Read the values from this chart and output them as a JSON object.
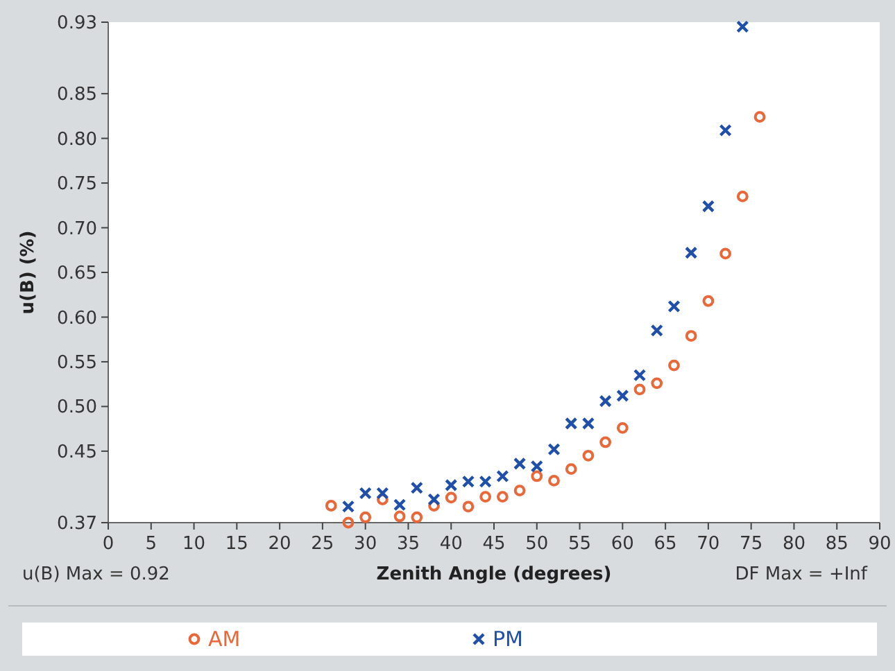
{
  "chart_data": {
    "type": "scatter",
    "xlabel": "Zenith Angle (degrees)",
    "ylabel": "u(B) (%)",
    "xlim": [
      0,
      90
    ],
    "xticks": [
      0,
      5,
      10,
      15,
      20,
      25,
      30,
      35,
      40,
      45,
      50,
      55,
      60,
      65,
      70,
      75,
      80,
      85,
      90
    ],
    "ylim": [
      0.37,
      0.93
    ],
    "yticks": [
      0.37,
      0.45,
      {
        "value": 0.5,
        "label": "0.50"
      },
      0.55,
      {
        "value": 0.6,
        "label": "0.60"
      },
      0.65,
      {
        "value": 0.7,
        "label": "0.70"
      },
      0.75,
      {
        "value": 0.8,
        "label": "0.80"
      },
      0.85,
      0.93
    ],
    "grid": false,
    "legend": "bottom",
    "annotations": [
      "u(B) Max = 0.92",
      "DF Max = +Inf"
    ],
    "series": [
      {
        "name": "AM",
        "color": "#e8683a",
        "marker": "circle",
        "x": [
          26,
          28,
          30,
          32,
          34,
          36,
          38,
          40,
          42,
          44,
          46,
          48,
          50,
          52,
          54,
          56,
          58,
          60,
          62,
          64,
          66,
          68,
          70,
          72,
          74,
          76
        ],
        "values": [
          0.389,
          0.37,
          0.376,
          0.396,
          0.377,
          0.376,
          0.389,
          0.398,
          0.388,
          0.399,
          0.399,
          0.406,
          0.422,
          0.417,
          0.43,
          0.445,
          0.46,
          0.476,
          0.519,
          0.526,
          0.546,
          0.579,
          0.618,
          0.671,
          0.735,
          0.824
        ]
      },
      {
        "name": "PM",
        "color": "#1f4fa8",
        "marker": "cross",
        "x": [
          28,
          30,
          32,
          34,
          36,
          38,
          40,
          42,
          44,
          46,
          48,
          50,
          52,
          54,
          56,
          58,
          60,
          62,
          64,
          66,
          68,
          70,
          72,
          74
        ],
        "values": [
          0.388,
          0.403,
          0.403,
          0.39,
          0.409,
          0.396,
          0.412,
          0.416,
          0.416,
          0.422,
          0.436,
          0.433,
          0.452,
          0.481,
          0.481,
          0.506,
          0.512,
          0.535,
          0.585,
          0.612,
          0.672,
          0.724,
          0.809,
          0.925
        ]
      }
    ]
  }
}
